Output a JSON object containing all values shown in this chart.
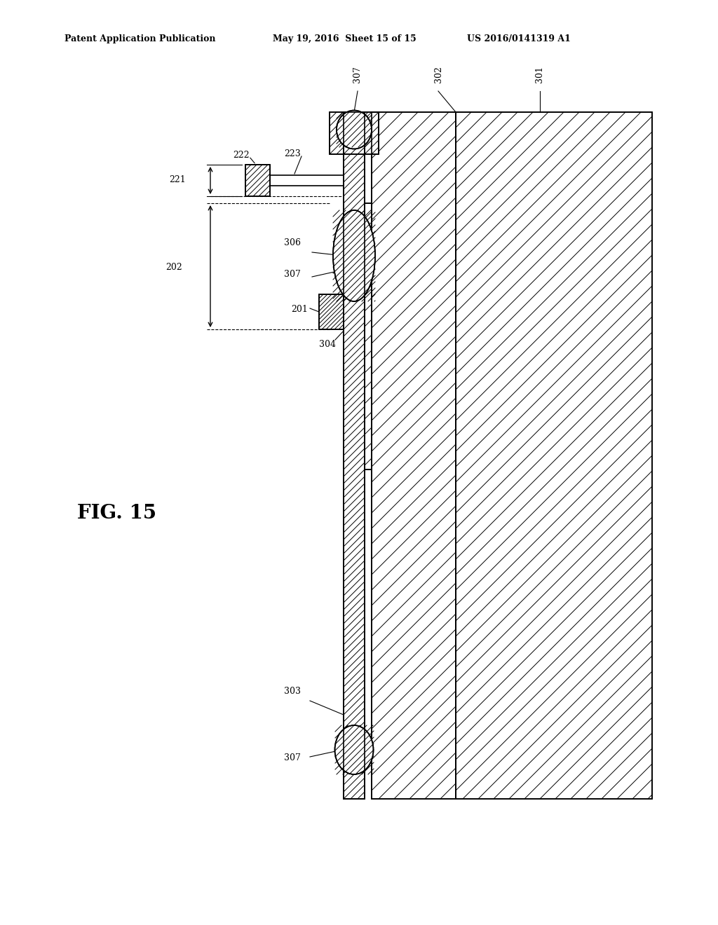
{
  "title": "FIG. 15",
  "header_left": "Patent Application Publication",
  "header_center": "May 19, 2016  Sheet 15 of 15",
  "header_right": "US 2016/0141319 A1",
  "bg_color": "#ffffff",
  "line_color": "#000000",
  "hatch_color": "#000000"
}
